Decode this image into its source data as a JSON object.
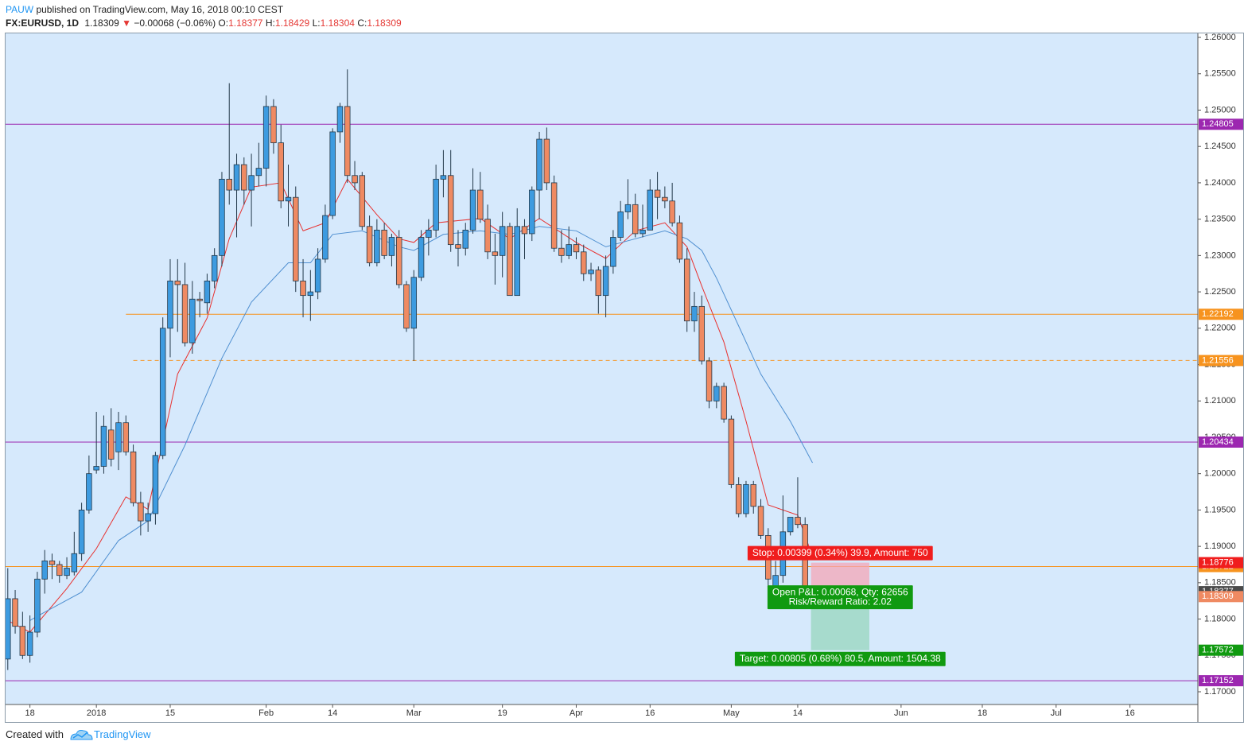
{
  "header": {
    "author": "PAUW",
    "published": "published on TradingView.com, May 16, 2018 00:10 CEST",
    "symbol": "FX:EURUSD, 1D",
    "last": "1.18309",
    "arrow": "▼",
    "change": "−0.00068 (−0.06%)",
    "ohlc": [
      {
        "label": "O:",
        "value": "1.18377"
      },
      {
        "label": "H:",
        "value": "1.18429"
      },
      {
        "label": "L:",
        "value": "1.18304"
      },
      {
        "label": "C:",
        "value": "1.18309"
      }
    ]
  },
  "footer": {
    "created_with": "Created with",
    "brand": "TradingView"
  },
  "chart_data": {
    "type": "candlestick",
    "background": "#d6e9fc",
    "up_color": "#3d9be0",
    "down_color": "#ef8a62",
    "outline_color": "#23394a",
    "xlim": [
      -0.3,
      161.2
    ],
    "xticks": [
      {
        "value": 3,
        "label": "18"
      },
      {
        "value": 12,
        "label": "2018"
      },
      {
        "value": 22,
        "label": "15"
      },
      {
        "value": 35,
        "label": "Feb"
      },
      {
        "value": 44,
        "label": "14"
      },
      {
        "value": 55,
        "label": "Mar"
      },
      {
        "value": 67,
        "label": "19"
      },
      {
        "value": 77,
        "label": "Apr"
      },
      {
        "value": 87,
        "label": "16"
      },
      {
        "value": 98,
        "label": "May"
      },
      {
        "value": 107,
        "label": "14"
      },
      {
        "value": 121,
        "label": "Jun"
      },
      {
        "value": 132,
        "label": "18"
      },
      {
        "value": 142,
        "label": "Jul"
      },
      {
        "value": 152,
        "label": "16"
      }
    ],
    "ylim": [
      1.16825,
      1.26055
    ],
    "yticks": [
      {
        "value": 1.26,
        "label": "1.26000"
      },
      {
        "value": 1.255,
        "label": "1.25500"
      },
      {
        "value": 1.25,
        "label": "1.25000"
      },
      {
        "value": 1.245,
        "label": "1.24500"
      },
      {
        "value": 1.24,
        "label": "1.24000"
      },
      {
        "value": 1.235,
        "label": "1.23500"
      },
      {
        "value": 1.23,
        "label": "1.23000"
      },
      {
        "value": 1.225,
        "label": "1.22500"
      },
      {
        "value": 1.22,
        "label": "1.22000"
      },
      {
        "value": 1.215,
        "label": "1.21500"
      },
      {
        "value": 1.21,
        "label": "1.21000"
      },
      {
        "value": 1.205,
        "label": "1.20500"
      },
      {
        "value": 1.2,
        "label": "1.20000"
      },
      {
        "value": 1.195,
        "label": "1.19500"
      },
      {
        "value": 1.19,
        "label": "1.19000"
      },
      {
        "value": 1.185,
        "label": "1.18500"
      },
      {
        "value": 1.18,
        "label": "1.18000"
      },
      {
        "value": 1.175,
        "label": "1.17500"
      },
      {
        "value": 1.17,
        "label": "1.17000"
      }
    ],
    "open": [
      1.1745,
      1.1828,
      1.179,
      1.175,
      1.1782,
      1.1855,
      1.188,
      1.1875,
      1.186,
      1.1865,
      1.189,
      1.195,
      1.2005,
      1.201,
      1.206,
      1.203,
      1.207,
      1.203,
      1.196,
      1.1935,
      1.1945,
      1.2025,
      1.22,
      1.2265,
      1.226,
      1.218,
      1.224,
      1.2235,
      1.2265,
      1.23,
      1.2405,
      1.239,
      1.2425,
      1.239,
      1.241,
      1.242,
      1.2505,
      1.2455,
      1.2375,
      1.238,
      1.2265,
      1.2245,
      1.225,
      1.2295,
      1.2355,
      1.247,
      1.2505,
      1.241,
      1.241,
      1.234,
      1.229,
      1.2335,
      1.23,
      1.2325,
      1.226,
      1.22,
      1.227,
      1.2325,
      1.2335,
      1.2405,
      1.241,
      1.2315,
      1.231,
      1.2335,
      1.239,
      1.235,
      1.2305,
      1.23,
      1.234,
      1.2245,
      1.234,
      1.233,
      1.239,
      1.246,
      1.24,
      1.231,
      1.23,
      1.2315,
      1.2305,
      1.2275,
      1.228,
      1.2245,
      1.2285,
      1.2325,
      1.236,
      1.237,
      1.233,
      1.2335,
      1.239,
      1.238,
      1.2375,
      1.2345,
      1.2295,
      1.221,
      1.223,
      1.2155,
      1.21,
      1.212,
      1.2075,
      1.1985,
      1.1945,
      1.1985,
      1.1955,
      1.1915,
      1.1845,
      1.186,
      1.192,
      1.194,
      1.193,
      1.18377
    ],
    "high": [
      1.187,
      1.184,
      1.181,
      1.1805,
      1.1865,
      1.1895,
      1.189,
      1.188,
      1.1885,
      1.192,
      1.196,
      1.2025,
      1.2085,
      1.208,
      1.209,
      1.2085,
      1.208,
      1.204,
      1.1975,
      1.196,
      1.203,
      1.2215,
      1.2295,
      1.2295,
      1.229,
      1.2265,
      1.225,
      1.2275,
      1.231,
      1.2415,
      1.2537,
      1.244,
      1.2435,
      1.244,
      1.2455,
      1.252,
      1.2515,
      1.248,
      1.2425,
      1.2395,
      1.2295,
      1.228,
      1.231,
      1.237,
      1.2475,
      1.251,
      1.2556,
      1.243,
      1.2415,
      1.2355,
      1.235,
      1.2345,
      1.233,
      1.2335,
      1.2265,
      1.228,
      1.2335,
      1.235,
      1.2425,
      1.2445,
      1.2445,
      1.2335,
      1.2345,
      1.242,
      1.2415,
      1.237,
      1.233,
      1.236,
      1.2345,
      1.2365,
      1.235,
      1.2395,
      1.247,
      1.2476,
      1.241,
      1.2335,
      1.234,
      1.2325,
      1.2315,
      1.229,
      1.2285,
      1.23,
      1.2335,
      1.2375,
      1.2405,
      1.2385,
      1.237,
      1.2405,
      1.2415,
      1.2395,
      1.24,
      1.2355,
      1.231,
      1.225,
      1.2245,
      1.216,
      1.2125,
      1.2125,
      1.208,
      1.1995,
      1.199,
      1.199,
      1.1965,
      1.1925,
      1.188,
      1.197,
      1.194,
      1.1995,
      1.194,
      1.18429
    ],
    "low": [
      1.173,
      1.178,
      1.1745,
      1.174,
      1.1775,
      1.1835,
      1.1855,
      1.185,
      1.1855,
      1.186,
      1.188,
      1.1945,
      1.2,
      1.2,
      1.201,
      1.2005,
      1.2025,
      1.1955,
      1.1915,
      1.192,
      1.193,
      1.202,
      1.216,
      1.2195,
      1.2175,
      1.2165,
      1.2215,
      1.222,
      1.2255,
      1.2285,
      1.237,
      1.2325,
      1.237,
      1.234,
      1.2395,
      1.2395,
      1.244,
      1.2365,
      1.234,
      1.225,
      1.2215,
      1.221,
      1.224,
      1.229,
      1.235,
      1.2455,
      1.24,
      1.239,
      1.2335,
      1.2285,
      1.2285,
      1.2295,
      1.2285,
      1.2255,
      1.2195,
      1.2155,
      1.2265,
      1.23,
      1.2325,
      1.238,
      1.2305,
      1.2285,
      1.23,
      1.233,
      1.2345,
      1.2295,
      1.226,
      1.227,
      1.2245,
      1.2245,
      1.2295,
      1.232,
      1.235,
      1.239,
      1.2305,
      1.229,
      1.2295,
      1.2295,
      1.2265,
      1.2265,
      1.222,
      1.2215,
      1.2275,
      1.232,
      1.235,
      1.2325,
      1.2325,
      1.2335,
      1.235,
      1.2365,
      1.234,
      1.229,
      1.2195,
      1.2195,
      1.215,
      1.209,
      1.209,
      1.207,
      1.198,
      1.194,
      1.194,
      1.1945,
      1.191,
      1.1845,
      1.182,
      1.185,
      1.1915,
      1.1925,
      1.182,
      1.18304
    ],
    "close": [
      1.1828,
      1.179,
      1.175,
      1.1782,
      1.1855,
      1.188,
      1.1875,
      1.186,
      1.187,
      1.189,
      1.195,
      1.2,
      1.201,
      1.2065,
      1.202,
      1.207,
      1.203,
      1.196,
      1.1935,
      1.1945,
      1.2025,
      1.22,
      1.2265,
      1.226,
      1.218,
      1.224,
      1.2238,
      1.2265,
      1.23,
      1.2405,
      1.239,
      1.2425,
      1.239,
      1.241,
      1.242,
      1.2505,
      1.2455,
      1.2375,
      1.238,
      1.2265,
      1.2245,
      1.225,
      1.2295,
      1.2355,
      1.247,
      1.2505,
      1.241,
      1.24,
      1.234,
      1.229,
      1.2335,
      1.23,
      1.2325,
      1.226,
      1.22,
      1.227,
      1.2325,
      1.2335,
      1.2405,
      1.241,
      1.2315,
      1.231,
      1.2335,
      1.239,
      1.235,
      1.2305,
      1.23,
      1.234,
      1.2245,
      1.234,
      1.233,
      1.239,
      1.246,
      1.24,
      1.231,
      1.23,
      1.2315,
      1.2305,
      1.2275,
      1.228,
      1.2245,
      1.2285,
      1.2325,
      1.236,
      1.237,
      1.233,
      1.2335,
      1.239,
      1.238,
      1.2375,
      1.2345,
      1.2295,
      1.221,
      1.223,
      1.2155,
      1.21,
      1.212,
      1.2075,
      1.1985,
      1.1945,
      1.1985,
      1.1955,
      1.1915,
      1.1855,
      1.186,
      1.192,
      1.194,
      1.193,
      1.18377,
      1.18309
    ],
    "moving_averages": [
      {
        "color": "#e8312f",
        "x": [
          0,
          3,
          8,
          12,
          16,
          19,
          23,
          27,
          30,
          33,
          37,
          40,
          43,
          46,
          50,
          53,
          55,
          58,
          64,
          68,
          72,
          77,
          81,
          85,
          89,
          92,
          94,
          97,
          100,
          103,
          107,
          109
        ],
        "values": [
          1.1798,
          1.1782,
          1.1842,
          1.1897,
          1.1968,
          1.1951,
          1.2137,
          1.2214,
          1.2323,
          1.2394,
          1.24,
          1.2334,
          1.2345,
          1.2405,
          1.2356,
          1.2323,
          1.2318,
          1.2345,
          1.2351,
          1.2323,
          1.2351,
          1.2318,
          1.2296,
          1.2334,
          1.2345,
          1.2312,
          1.2258,
          1.2181,
          1.2072,
          1.1957,
          1.1943,
          1.1886
        ]
      },
      {
        "color": "#4f8fd0",
        "x": [
          3,
          4,
          10,
          15,
          19,
          24,
          29,
          33,
          38,
          41,
          44,
          48,
          53,
          55,
          59,
          64,
          68,
          72,
          77,
          81,
          85,
          89,
          92,
          94,
          96,
          99,
          102,
          106,
          109
        ],
        "values": [
          1.1798,
          1.1804,
          1.1837,
          1.1908,
          1.1935,
          1.2039,
          1.2159,
          1.2236,
          1.229,
          1.229,
          1.2329,
          1.2334,
          1.2312,
          1.2307,
          1.2329,
          1.2334,
          1.2329,
          1.234,
          1.2334,
          1.2312,
          1.2323,
          1.2334,
          1.2323,
          1.2307,
          1.2269,
          1.2203,
          1.2137,
          1.2072,
          1.2015
        ]
      }
    ],
    "levels": [
      {
        "value": 1.24805,
        "color": "#9c27b0"
      },
      {
        "value": 1.20434,
        "color": "#9c27b0"
      },
      {
        "value": 1.17152,
        "color": "#9c27b0"
      },
      {
        "value": 1.22192,
        "color": "#f7931e",
        "x_start": 16
      },
      {
        "value": 1.21556,
        "color": "#f7931e",
        "x_start": 17,
        "dashed": true
      },
      {
        "value": 1.18722,
        "color": "#f7931e"
      }
    ],
    "position": {
      "entry": 1.18377,
      "stop": 1.18776,
      "target": 1.17572,
      "x": [
        108.8,
        116.7
      ],
      "stop_label": "Stop: 0.00399 (0.34%) 39.9, Amount: 750",
      "pnl_label": "Open P&L: 0.00068, Qty: 62656",
      "rr_label": "Risk/Reward Ratio: 2.02",
      "target_label": "Target: 0.00805 (0.68%) 80.5, Amount: 1504.38"
    }
  }
}
